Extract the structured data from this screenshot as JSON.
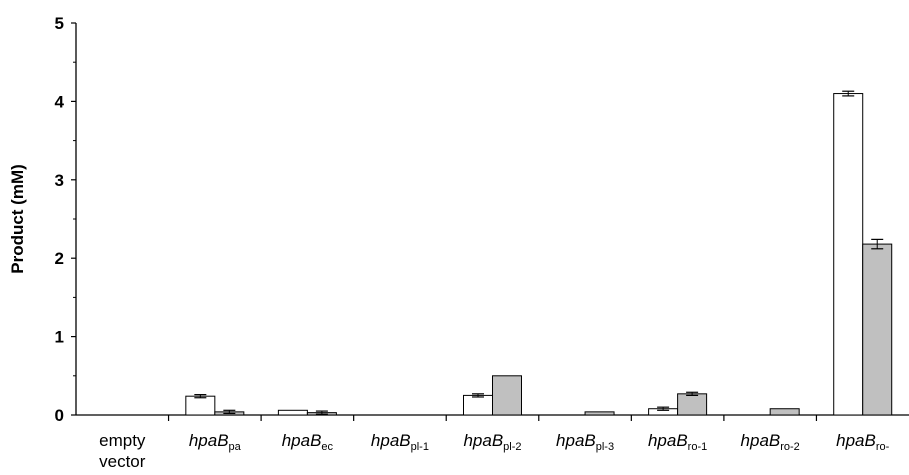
{
  "chart_data": {
    "type": "bar",
    "title": "",
    "xlabel": "",
    "ylabel": "Product (mM)",
    "ylim": [
      0,
      5
    ],
    "yticks": [
      "0",
      "1",
      "2",
      "3",
      "4",
      "5"
    ],
    "grid": false,
    "legend": "none",
    "categories": [
      {
        "label": "empty vector",
        "lines": [
          "empty",
          "vector"
        ],
        "base": "",
        "sub": ""
      },
      {
        "label": "hpaBpa",
        "lines": [],
        "base": "hpaB",
        "sub": "pa"
      },
      {
        "label": "hpaBec",
        "lines": [],
        "base": "hpaB",
        "sub": "ec"
      },
      {
        "label": "hpaBpl-1",
        "lines": [],
        "base": "hpaB",
        "sub": "pl-1"
      },
      {
        "label": "hpaBpl-2",
        "lines": [],
        "base": "hpaB",
        "sub": "pl-2"
      },
      {
        "label": "hpaBpl-3",
        "lines": [],
        "base": "hpaB",
        "sub": "pl-3"
      },
      {
        "label": "hpaBro-1",
        "lines": [],
        "base": "hpaB",
        "sub": "ro-1"
      },
      {
        "label": "hpaBro-2",
        "lines": [],
        "base": "hpaB",
        "sub": "ro-2"
      },
      {
        "label": "hpaBro-",
        "lines": [],
        "base": "hpaB",
        "sub": "ro-"
      }
    ],
    "series": [
      {
        "color": "#ffffff",
        "values": [
          0,
          0.24,
          0.06,
          0,
          0.25,
          0,
          0.08,
          0,
          4.1
        ],
        "errors": [
          0,
          0.02,
          0,
          0,
          0.02,
          0,
          0.02,
          0,
          0.03
        ]
      },
      {
        "color": "#c0c0c0",
        "values": [
          0,
          0.04,
          0.03,
          0,
          0.5,
          0.04,
          0.27,
          0.08,
          2.18
        ],
        "errors": [
          0,
          0.02,
          0.02,
          0,
          0,
          0,
          0.02,
          0,
          0.06
        ]
      }
    ]
  }
}
